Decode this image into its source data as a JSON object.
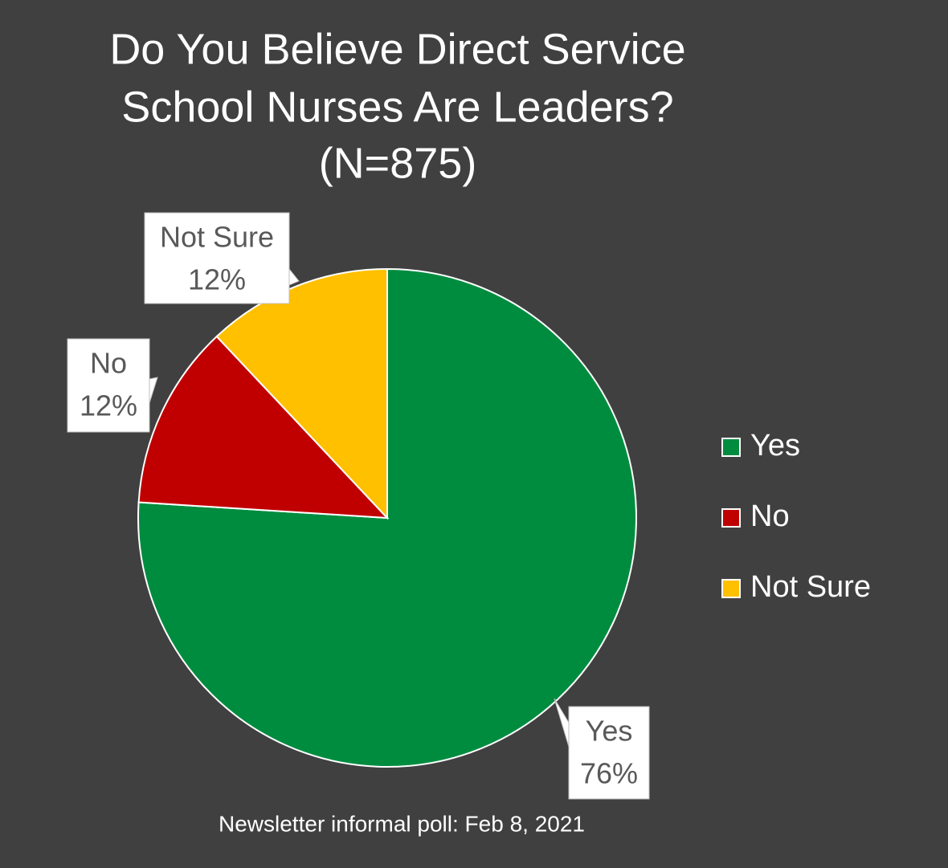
{
  "chart_data": {
    "type": "pie",
    "title": [
      "Do You Believe Direct Service",
      "School Nurses Are Leaders?",
      "(N=875)"
    ],
    "categories": [
      "Yes",
      "No",
      "Not Sure"
    ],
    "values": [
      76,
      12,
      12
    ],
    "value_labels": [
      "76%",
      "12%",
      "12%"
    ],
    "colors": [
      "#008c3f",
      "#c00000",
      "#ffc000"
    ],
    "legend": "right",
    "note": "Newsletter informal poll: Feb 8, 2021"
  }
}
